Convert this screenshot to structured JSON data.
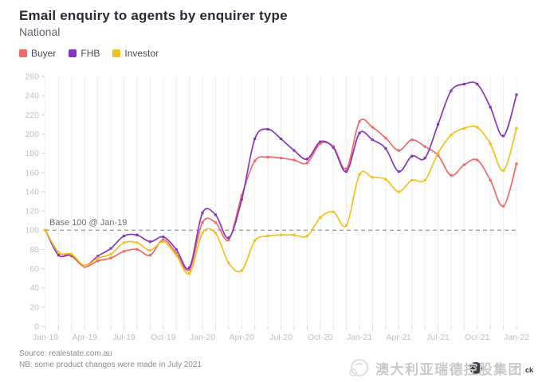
{
  "header": {
    "title": "Email enquiry to agents by enquirer type",
    "subtitle": "National"
  },
  "chart_data": {
    "type": "line",
    "x": [
      "Jan-19",
      "Feb-19",
      "Mar-19",
      "Apr-19",
      "May-19",
      "Jun-19",
      "Jul-19",
      "Aug-19",
      "Sep-19",
      "Oct-19",
      "Nov-19",
      "Dec-19",
      "Jan-20",
      "Feb-20",
      "Mar-20",
      "Apr-20",
      "May-20",
      "Jun-20",
      "Jul-20",
      "Aug-20",
      "Sep-20",
      "Oct-20",
      "Nov-20",
      "Dec-20",
      "Jan-21",
      "Feb-21",
      "Mar-21",
      "Apr-21",
      "May-21",
      "Jun-21",
      "Jul-21",
      "Aug-21",
      "Sep-21",
      "Oct-21",
      "Nov-21",
      "Dec-21",
      "Jan-22"
    ],
    "x_label_every": 3,
    "series": [
      {
        "name": "Buyer",
        "color": "#f06a6a",
        "values": [
          100,
          77,
          73,
          62,
          68,
          71,
          78,
          80,
          74,
          90,
          76,
          59,
          108,
          108,
          90,
          136,
          172,
          176,
          175,
          173,
          170,
          190,
          187,
          164,
          213,
          207,
          196,
          183,
          194,
          187,
          178,
          157,
          168,
          173,
          152,
          125,
          169
        ]
      },
      {
        "name": "FHB",
        "color": "#8636bd",
        "values": [
          100,
          74,
          74,
          63,
          73,
          81,
          94,
          95,
          88,
          93,
          80,
          61,
          118,
          116,
          92,
          132,
          195,
          205,
          195,
          183,
          174,
          192,
          186,
          161,
          201,
          194,
          185,
          161,
          177,
          175,
          210,
          245,
          252,
          252,
          228,
          198,
          241
        ]
      },
      {
        "name": "Investor",
        "color": "#f2c11d",
        "values": [
          100,
          77,
          75,
          63,
          71,
          75,
          87,
          87,
          79,
          88,
          74,
          55,
          97,
          97,
          66,
          58,
          89,
          94,
          95,
          95,
          94,
          113,
          119,
          105,
          158,
          155,
          153,
          140,
          152,
          152,
          180,
          199,
          206,
          207,
          190,
          162,
          206
        ]
      }
    ],
    "ylim": [
      0,
      260
    ],
    "ytick_step": 20,
    "baseline": {
      "value": 100,
      "label": "Base 100 @ Jan-19"
    },
    "grid": "vertical-monthly",
    "legend_position": "top-left"
  },
  "footer": {
    "source": "Source: realestate.com.au",
    "note": "NB: some product changes were made in July 2021"
  },
  "watermark": {
    "text": "澳大利亚瑞德控股集团",
    "suffix": "ck"
  }
}
